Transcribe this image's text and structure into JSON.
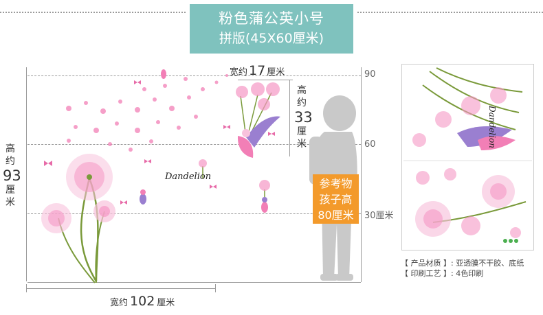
{
  "title": {
    "line1": "粉色蒲公英小号",
    "line2": "拼版(45X60厘米)",
    "bg_color": "#7fc2be"
  },
  "dimensions": {
    "width_total": {
      "prefix": "宽约",
      "value": "102",
      "unit": "厘米"
    },
    "height_total": {
      "chars": [
        "高",
        "约"
      ],
      "value": "93",
      "unit_chars": [
        "厘",
        "米"
      ]
    },
    "fairy_width": {
      "prefix": "宽约",
      "value": "17",
      "unit": "厘米"
    },
    "fairy_height": {
      "chars": [
        "高",
        "约"
      ],
      "value": "33",
      "unit_chars": [
        "厘",
        "米"
      ]
    }
  },
  "scale": {
    "ticks": [
      "90",
      "60",
      "30厘米"
    ]
  },
  "child_note": {
    "lines": [
      "参考物",
      "孩子高",
      "80厘米"
    ],
    "color": "#f39a2b"
  },
  "decal": {
    "logo": "Dandelion",
    "colors": {
      "pink": "#f27fb6",
      "stem": "#7a9a3a",
      "purple": "#9a7fd0"
    }
  },
  "specs": [
    "【 产品材质 】: 亚透膜不干胶、底纸",
    "【 印刷工艺 】: 4色印刷"
  ]
}
